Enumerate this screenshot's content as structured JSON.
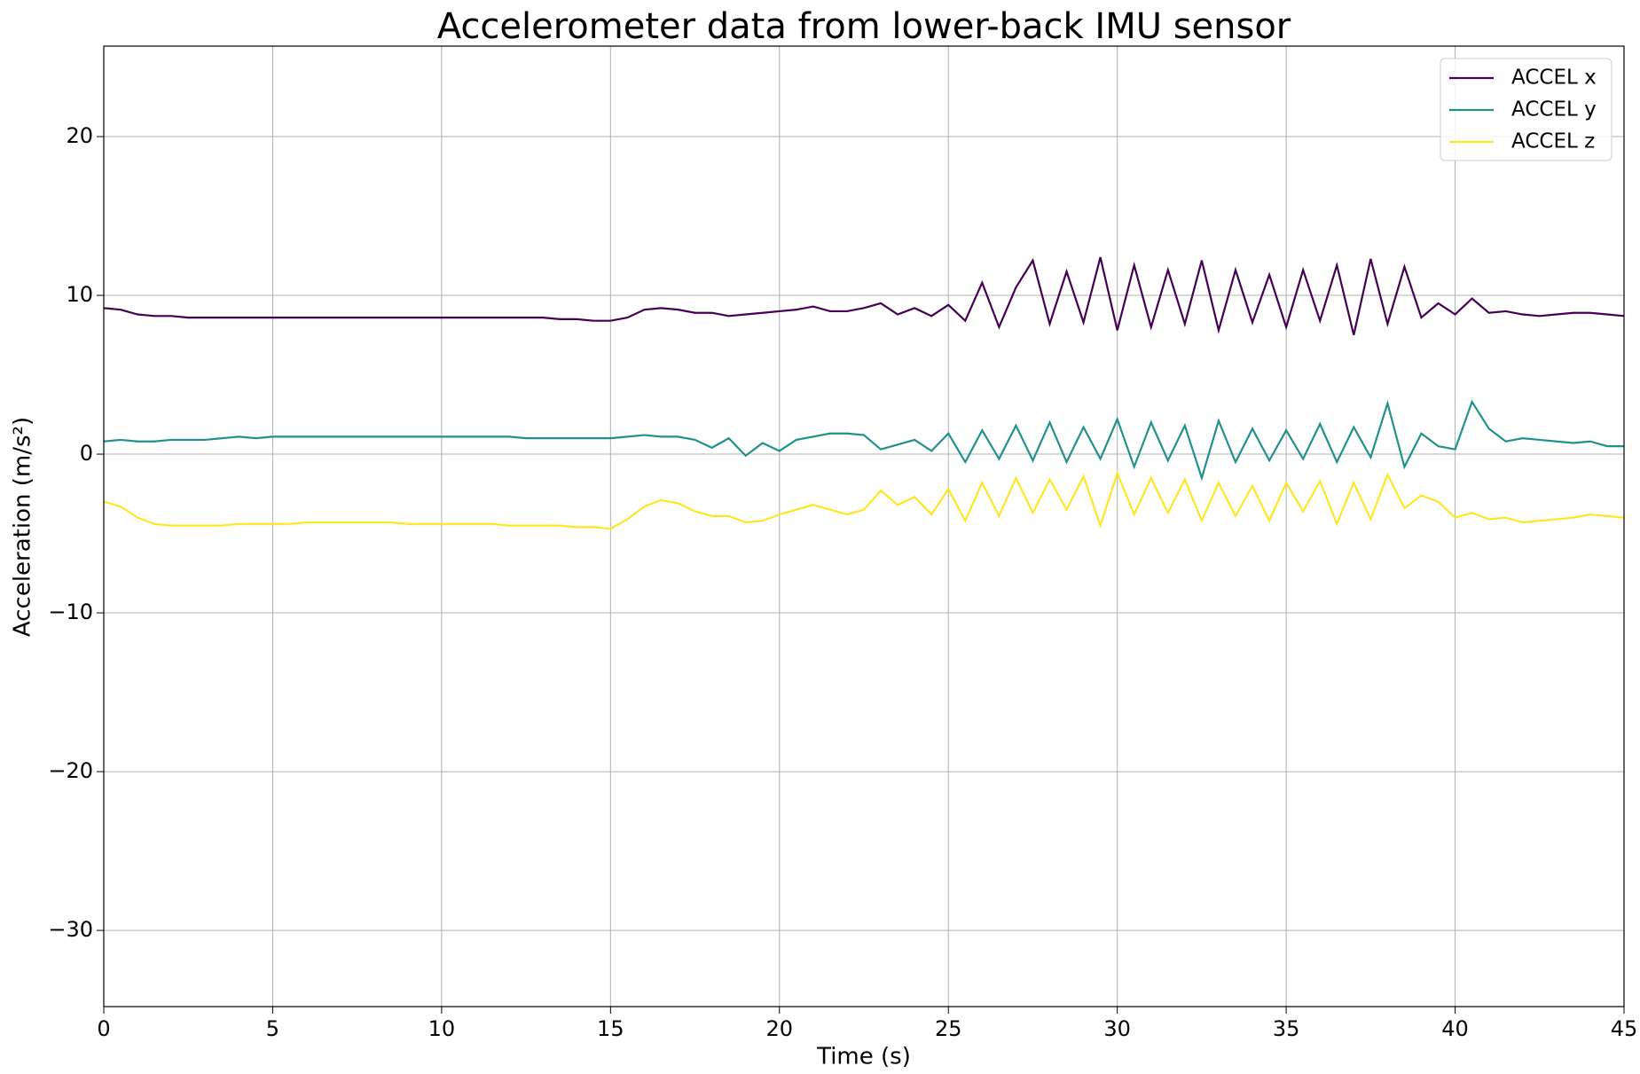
{
  "chart_data": {
    "type": "line",
    "title": "Accelerometer data from lower-back IMU sensor",
    "xlabel": "Time (s)",
    "ylabel": "Acceleration (m/s²)",
    "x": [
      0,
      0.5,
      1,
      1.5,
      2,
      2.5,
      3,
      3.5,
      4,
      4.5,
      5,
      5.5,
      6,
      6.5,
      7,
      7.5,
      8,
      8.5,
      9,
      9.5,
      10,
      10.5,
      11,
      11.5,
      12,
      12.5,
      13,
      13.5,
      14,
      14.5,
      15,
      15.5,
      16,
      16.5,
      17,
      17.5,
      18,
      18.5,
      19,
      19.5,
      20,
      20.5,
      21,
      21.5,
      22,
      22.5,
      23,
      23.5,
      24,
      24.5,
      25,
      25.5,
      26,
      26.5,
      27,
      27.5,
      28,
      28.5,
      29,
      29.5,
      30,
      30.5,
      31,
      31.5,
      32,
      32.5,
      33,
      33.5,
      34,
      34.5,
      35,
      35.5,
      36,
      36.5,
      37,
      37.5,
      38,
      38.5,
      39,
      39.5,
      40,
      40.5,
      41,
      41.5,
      42,
      42.5,
      43,
      43.5,
      44,
      44.5,
      45
    ],
    "series": [
      {
        "name": "ACCEL x",
        "color": "#440154",
        "values": [
          9.2,
          9.1,
          8.8,
          8.7,
          8.7,
          8.6,
          8.6,
          8.6,
          8.6,
          8.6,
          8.6,
          8.6,
          8.6,
          8.6,
          8.6,
          8.6,
          8.6,
          8.6,
          8.6,
          8.6,
          8.6,
          8.6,
          8.6,
          8.6,
          8.6,
          8.6,
          8.6,
          8.5,
          8.5,
          8.4,
          8.4,
          8.6,
          9.1,
          9.2,
          9.1,
          8.9,
          8.9,
          8.7,
          8.8,
          8.9,
          9.0,
          9.1,
          9.3,
          9.0,
          9.0,
          9.2,
          9.5,
          8.8,
          9.2,
          8.7,
          9.4,
          8.4,
          10.8,
          8.0,
          10.5,
          12.2,
          8.2,
          11.5,
          8.3,
          12.4,
          7.8,
          11.9,
          8.0,
          11.6,
          8.2,
          12.2,
          7.8,
          11.6,
          8.3,
          11.3,
          8.0,
          11.6,
          8.4,
          11.9,
          7.5,
          12.3,
          8.2,
          11.8,
          8.6,
          9.5,
          8.8,
          9.8,
          8.9,
          9.0,
          8.8,
          8.7,
          8.8,
          8.9,
          8.9,
          8.8,
          8.7
        ]
      },
      {
        "name": "ACCEL y",
        "color": "#21918c",
        "values": [
          0.8,
          0.9,
          0.8,
          0.8,
          0.9,
          0.9,
          0.9,
          1.0,
          1.1,
          1.0,
          1.1,
          1.1,
          1.1,
          1.1,
          1.1,
          1.1,
          1.1,
          1.1,
          1.1,
          1.1,
          1.1,
          1.1,
          1.1,
          1.1,
          1.1,
          1.0,
          1.0,
          1.0,
          1.0,
          1.0,
          1.0,
          1.1,
          1.2,
          1.1,
          1.1,
          0.9,
          0.4,
          1.0,
          -0.1,
          0.7,
          0.2,
          0.9,
          1.1,
          1.3,
          1.3,
          1.2,
          0.3,
          0.6,
          0.9,
          0.2,
          1.3,
          -0.5,
          1.5,
          -0.3,
          1.8,
          -0.4,
          2.0,
          -0.5,
          1.7,
          -0.3,
          2.2,
          -0.8,
          2.0,
          -0.4,
          1.8,
          -1.5,
          2.1,
          -0.5,
          1.6,
          -0.4,
          1.5,
          -0.3,
          1.9,
          -0.5,
          1.7,
          -0.2,
          3.2,
          -0.8,
          1.3,
          0.5,
          0.3,
          3.3,
          1.6,
          0.8,
          1.0,
          0.9,
          0.8,
          0.7,
          0.8,
          0.5,
          0.5
        ]
      },
      {
        "name": "ACCEL z",
        "color": "#fde725",
        "values": [
          -3.0,
          -3.3,
          -4.0,
          -4.4,
          -4.5,
          -4.5,
          -4.5,
          -4.5,
          -4.4,
          -4.4,
          -4.4,
          -4.4,
          -4.3,
          -4.3,
          -4.3,
          -4.3,
          -4.3,
          -4.3,
          -4.4,
          -4.4,
          -4.4,
          -4.4,
          -4.4,
          -4.4,
          -4.5,
          -4.5,
          -4.5,
          -4.5,
          -4.6,
          -4.6,
          -4.7,
          -4.1,
          -3.3,
          -2.9,
          -3.1,
          -3.6,
          -3.9,
          -3.9,
          -4.3,
          -4.2,
          -3.8,
          -3.5,
          -3.2,
          -3.5,
          -3.8,
          -3.5,
          -2.3,
          -3.2,
          -2.7,
          -3.8,
          -2.2,
          -4.2,
          -1.8,
          -3.9,
          -1.5,
          -3.7,
          -1.6,
          -3.5,
          -1.4,
          -4.5,
          -1.2,
          -3.8,
          -1.5,
          -3.7,
          -1.6,
          -4.2,
          -1.8,
          -3.9,
          -2.0,
          -4.2,
          -1.8,
          -3.6,
          -1.7,
          -4.4,
          -1.8,
          -4.1,
          -1.3,
          -3.4,
          -2.6,
          -3.0,
          -4.0,
          -3.7,
          -4.1,
          -4.0,
          -4.3,
          -4.2,
          -4.1,
          -4.0,
          -3.8,
          -3.9,
          -4.0
        ]
      }
    ],
    "xlim": [
      0,
      45
    ],
    "xticks": [
      0,
      5,
      10,
      15,
      20,
      25,
      30,
      35,
      40,
      45
    ],
    "ylim": [
      -34.8,
      25.7
    ],
    "yticks": [
      {
        "value": -30,
        "label": "−30"
      },
      {
        "value": -20,
        "label": "−20"
      },
      {
        "value": -10,
        "label": "−10"
      },
      0,
      10,
      20
    ],
    "grid": true,
    "legend": "upper right"
  }
}
